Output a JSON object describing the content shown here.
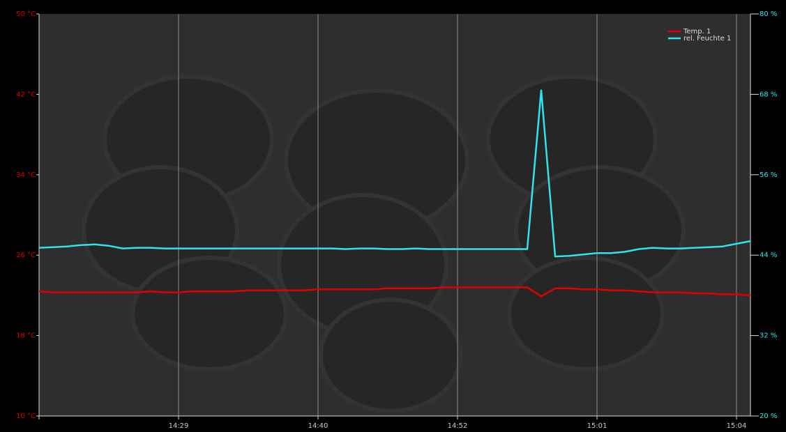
{
  "chart_data": {
    "type": "line",
    "categories": [
      null,
      null,
      null,
      null,
      null,
      null,
      null,
      null,
      null,
      null,
      "14:29",
      null,
      null,
      null,
      null,
      null,
      null,
      null,
      null,
      null,
      "14:40",
      null,
      null,
      null,
      null,
      null,
      null,
      null,
      null,
      null,
      "14:52",
      null,
      null,
      null,
      null,
      null,
      null,
      null,
      null,
      null,
      "15:01",
      null,
      null,
      null,
      null,
      null,
      null,
      null,
      null,
      null,
      "15:04",
      null
    ],
    "series": [
      {
        "name": "Temp. 1",
        "color": "#e00000",
        "axis": "y",
        "values": [
          22.4,
          22.3,
          22.3,
          22.3,
          22.3,
          22.3,
          22.3,
          22.3,
          22.4,
          22.3,
          22.3,
          22.4,
          22.4,
          22.4,
          22.4,
          22.5,
          22.5,
          22.5,
          22.5,
          22.5,
          22.6,
          22.6,
          22.6,
          22.6,
          22.6,
          22.7,
          22.7,
          22.7,
          22.7,
          22.8,
          22.8,
          22.8,
          22.8,
          22.8,
          22.8,
          22.8,
          21.9,
          22.7,
          22.7,
          22.6,
          22.6,
          22.5,
          22.5,
          22.4,
          22.3,
          22.3,
          22.3,
          22.2,
          22.2,
          22.1,
          22.1,
          22.0
        ]
      },
      {
        "name": "rel. Feuchte 1",
        "color": "#30e4ec",
        "axis": "y2",
        "values": [
          45.1,
          45.2,
          45.3,
          45.5,
          45.6,
          45.4,
          45.0,
          45.1,
          45.1,
          45.0,
          45.0,
          45.0,
          45.0,
          45.0,
          45.0,
          45.0,
          45.0,
          45.0,
          45.0,
          45.0,
          45.0,
          45.0,
          44.9,
          45.0,
          45.0,
          44.9,
          44.9,
          45.0,
          44.9,
          44.9,
          44.9,
          44.9,
          44.9,
          44.9,
          44.9,
          44.9,
          68.6,
          43.8,
          43.9,
          44.1,
          44.3,
          44.3,
          44.5,
          44.9,
          45.1,
          45.0,
          45.0,
          45.1,
          45.2,
          45.3,
          45.7,
          46.1
        ]
      }
    ],
    "ylim": [
      10,
      50
    ],
    "yticks": [
      {
        "value": 10,
        "label": "10 °C"
      },
      {
        "value": 18,
        "label": "18 °C"
      },
      {
        "value": 26,
        "label": "26 °C"
      },
      {
        "value": 34,
        "label": "34 °C"
      },
      {
        "value": 42,
        "label": "42 °C"
      },
      {
        "value": 50,
        "label": "50 °C"
      }
    ],
    "y2lim": [
      20,
      80
    ],
    "y2ticks": [
      {
        "value": 20,
        "label": "20 %"
      },
      {
        "value": 32,
        "label": "32 %"
      },
      {
        "value": 44,
        "label": "44 %"
      },
      {
        "value": 56,
        "label": "56 %"
      },
      {
        "value": 68,
        "label": "68 %"
      },
      {
        "value": 80,
        "label": "80 %"
      }
    ],
    "legend": "upper right",
    "grid": true
  }
}
